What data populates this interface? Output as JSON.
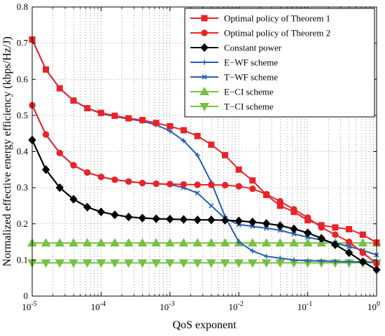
{
  "chart_data": {
    "type": "line",
    "xlabel": "QoS exponent",
    "ylabel": "Normalized effective energy efficiency (kbps/Hz/J)",
    "x_scale": "log",
    "xlim": [
      1e-05,
      1
    ],
    "ylim": [
      0,
      0.8
    ],
    "grid": true,
    "legend_position": "top-right",
    "x_ticks": [
      1e-05,
      0.0001,
      0.001,
      0.01,
      0.1,
      1
    ],
    "x_tick_labels": [
      {
        "base": "10",
        "exp": "-5"
      },
      {
        "base": "10",
        "exp": "-4"
      },
      {
        "base": "10",
        "exp": "-3"
      },
      {
        "base": "10",
        "exp": "-2"
      },
      {
        "base": "10",
        "exp": "-1"
      },
      {
        "base": "10",
        "exp": "0"
      }
    ],
    "y_ticks": [
      0,
      0.1,
      0.2,
      0.3,
      0.4,
      0.5,
      0.6,
      0.7,
      0.8
    ],
    "y_tick_labels": [
      "0",
      "0.1",
      "0.2",
      "0.3",
      "0.4",
      "0.5",
      "0.6",
      "0.7",
      "0.8"
    ],
    "series": [
      {
        "name": "Optimal policy of Theorem 1",
        "color": "#e8232a",
        "marker": "square",
        "x": [
          1e-05,
          1.58e-05,
          2.51e-05,
          3.98e-05,
          6.31e-05,
          0.0001,
          0.000158,
          0.000251,
          0.000398,
          0.000631,
          0.001,
          0.00158,
          0.00251,
          0.00398,
          0.00631,
          0.01,
          0.0158,
          0.0251,
          0.0398,
          0.0631,
          0.1,
          0.158,
          0.251,
          0.398,
          0.631,
          1
        ],
        "y": [
          0.71,
          0.627,
          0.575,
          0.541,
          0.52,
          0.507,
          0.499,
          0.492,
          0.487,
          0.479,
          0.47,
          0.459,
          0.443,
          0.419,
          0.39,
          0.35,
          0.32,
          0.28,
          0.25,
          0.233,
          0.21,
          0.196,
          0.19,
          0.185,
          0.17,
          0.148
        ]
      },
      {
        "name": "Optimal policy of Theorem 2",
        "color": "#e8232a",
        "marker": "circle",
        "x": [
          1e-05,
          1.58e-05,
          2.51e-05,
          3.98e-05,
          6.31e-05,
          0.0001,
          0.000158,
          0.000251,
          0.000398,
          0.000631,
          0.001,
          0.00158,
          0.00251,
          0.00398,
          0.00631,
          0.01,
          0.0158,
          0.0251,
          0.0398,
          0.0631,
          0.1,
          0.158,
          0.251,
          0.398,
          0.631,
          1
        ],
        "y": [
          0.528,
          0.447,
          0.396,
          0.362,
          0.342,
          0.33,
          0.322,
          0.317,
          0.313,
          0.311,
          0.31,
          0.309,
          0.308,
          0.308,
          0.307,
          0.304,
          0.297,
          0.282,
          0.262,
          0.24,
          0.217,
          0.19,
          0.17,
          0.15,
          0.12,
          0.09
        ]
      },
      {
        "name": "Constant power",
        "color": "#000000",
        "marker": "diamond",
        "x": [
          1e-05,
          1.58e-05,
          2.51e-05,
          3.98e-05,
          6.31e-05,
          0.0001,
          0.000158,
          0.000251,
          0.000398,
          0.000631,
          0.001,
          0.00158,
          0.00251,
          0.00398,
          0.00631,
          0.01,
          0.0158,
          0.0251,
          0.0398,
          0.0631,
          0.1,
          0.158,
          0.251,
          0.398,
          0.631,
          1
        ],
        "y": [
          0.432,
          0.35,
          0.3,
          0.268,
          0.246,
          0.233,
          0.225,
          0.219,
          0.216,
          0.214,
          0.213,
          0.212,
          0.211,
          0.211,
          0.21,
          0.208,
          0.205,
          0.201,
          0.195,
          0.186,
          0.175,
          0.16,
          0.142,
          0.12,
          0.095,
          0.073
        ]
      },
      {
        "name": "E−WF scheme",
        "color": "#1f5fb4",
        "marker": "plus",
        "x": [
          1e-05,
          1.58e-05,
          2.51e-05,
          3.98e-05,
          6.31e-05,
          0.0001,
          0.000158,
          0.000251,
          0.000398,
          0.000631,
          0.001,
          0.00158,
          0.00251,
          0.00398,
          0.00631,
          0.01,
          0.0158,
          0.0251,
          0.0398,
          0.0631,
          0.1,
          0.158,
          0.251,
          0.398,
          0.631,
          1
        ],
        "y": [
          0.71,
          0.627,
          0.575,
          0.541,
          0.52,
          0.505,
          0.497,
          0.49,
          0.484,
          0.474,
          0.457,
          0.43,
          0.39,
          0.315,
          0.22,
          0.15,
          0.125,
          0.11,
          0.105,
          0.1,
          0.098,
          0.097,
          0.096,
          0.095,
          0.095,
          0.094
        ]
      },
      {
        "name": "T−WF scheme",
        "color": "#1f5fb4",
        "marker": "x",
        "x": [
          1e-05,
          1.58e-05,
          2.51e-05,
          3.98e-05,
          6.31e-05,
          0.0001,
          0.000158,
          0.000251,
          0.000398,
          0.000631,
          0.001,
          0.00158,
          0.00251,
          0.00398,
          0.00631,
          0.01,
          0.0158,
          0.0251,
          0.0398,
          0.0631,
          0.1,
          0.158,
          0.251,
          0.398,
          0.631,
          1
        ],
        "y": [
          0.528,
          0.447,
          0.396,
          0.362,
          0.342,
          0.33,
          0.322,
          0.317,
          0.313,
          0.311,
          0.309,
          0.3,
          0.285,
          0.25,
          0.215,
          0.198,
          0.193,
          0.188,
          0.182,
          0.172,
          0.163,
          0.155,
          0.147,
          0.137,
          0.127,
          0.114
        ]
      },
      {
        "name": "E−CI scheme",
        "color": "#77c043",
        "marker": "triangle-up",
        "x": [
          1e-05,
          1.58e-05,
          2.51e-05,
          3.98e-05,
          6.31e-05,
          0.0001,
          0.000158,
          0.000251,
          0.000398,
          0.000631,
          0.001,
          0.00158,
          0.00251,
          0.00398,
          0.00631,
          0.01,
          0.0158,
          0.0251,
          0.0398,
          0.0631,
          0.1,
          0.158,
          0.251,
          0.398,
          0.631,
          1
        ],
        "y": [
          0.147,
          0.147,
          0.147,
          0.147,
          0.147,
          0.147,
          0.147,
          0.147,
          0.147,
          0.147,
          0.147,
          0.147,
          0.147,
          0.147,
          0.147,
          0.147,
          0.147,
          0.147,
          0.147,
          0.147,
          0.147,
          0.147,
          0.147,
          0.147,
          0.147,
          0.147
        ]
      },
      {
        "name": "T−CI scheme",
        "color": "#77c043",
        "marker": "triangle-down",
        "x": [
          1e-05,
          1.58e-05,
          2.51e-05,
          3.98e-05,
          6.31e-05,
          0.0001,
          0.000158,
          0.000251,
          0.000398,
          0.000631,
          0.001,
          0.00158,
          0.00251,
          0.00398,
          0.00631,
          0.01,
          0.0158,
          0.0251,
          0.0398,
          0.0631,
          0.1,
          0.158,
          0.251,
          0.398,
          0.631,
          1
        ],
        "y": [
          0.092,
          0.092,
          0.092,
          0.092,
          0.092,
          0.092,
          0.092,
          0.092,
          0.092,
          0.092,
          0.092,
          0.092,
          0.092,
          0.092,
          0.092,
          0.092,
          0.092,
          0.092,
          0.092,
          0.092,
          0.092,
          0.092,
          0.092,
          0.092,
          0.092,
          0.092
        ]
      }
    ]
  }
}
